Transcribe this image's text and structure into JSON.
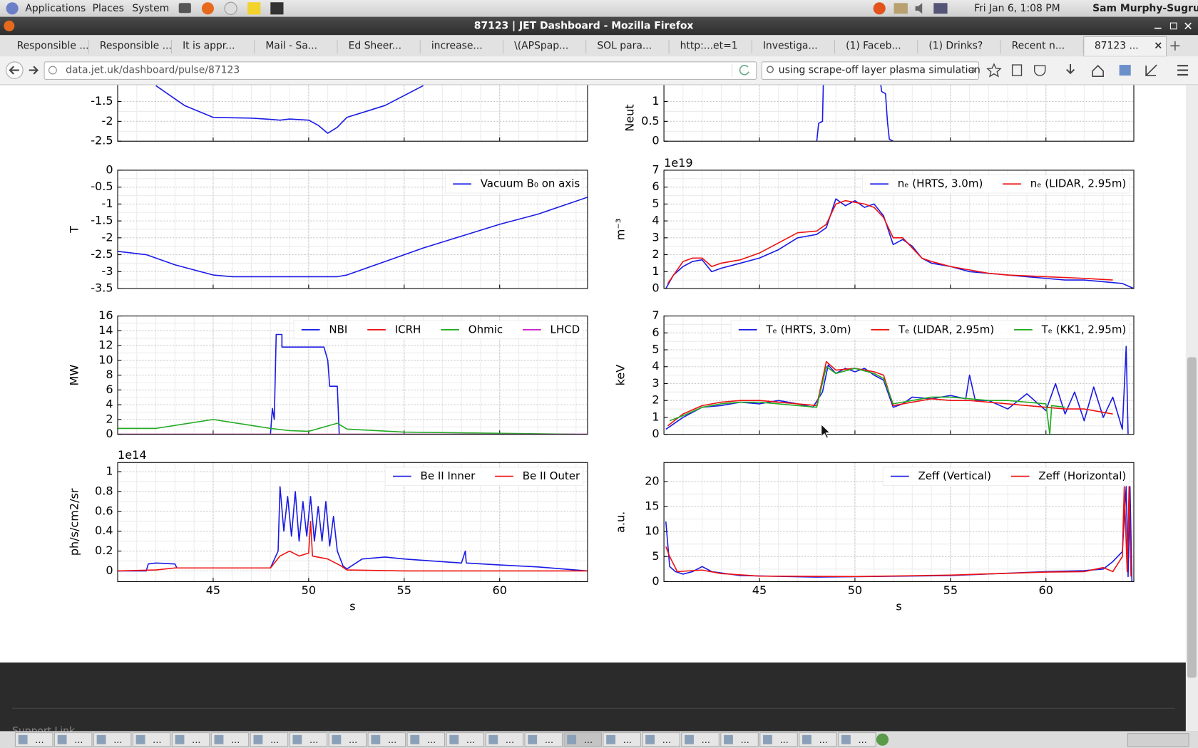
{
  "topbar": {
    "menus": [
      "Applications",
      "Places",
      "System"
    ],
    "clock": "Fri Jan  6,  1:08 PM",
    "user": "Sam Murphy-Sugrue"
  },
  "window_title": "87123 | JET Dashboard - Mozilla Firefox",
  "tabs": [
    "Responsible ...",
    "Responsible ...",
    "It is appr...",
    "Mail - Sa...",
    "Ed Sheer...",
    "increase...",
    "\\(APSpap...",
    "SOL para...",
    "http:...et=1",
    "Investiga...",
    "(1) Faceb...",
    "(1) Drinks?",
    "Recent n...",
    "87123 ..."
  ],
  "url": "data.jet.uk/dashboard/pulse/87123",
  "search": "using scrape-off layer plasma simulation",
  "footer": {
    "link": "Support Link"
  },
  "taskbar": [
    "...",
    "...",
    "...",
    "...",
    "...",
    "...",
    "...",
    "...",
    "...",
    "...",
    "...",
    "...",
    "...",
    "...",
    "...",
    "...",
    "...",
    "...",
    "...",
    "...",
    "...",
    "..."
  ],
  "charts": [
    {
      "type": "line",
      "xlim": [
        40,
        64.6
      ],
      "xticks": [
        45,
        50,
        55,
        60
      ],
      "ylim": [
        -2.5,
        -1.02
      ],
      "yticks": [
        -2.5,
        -2.0,
        -1.5
      ],
      "grid": true,
      "series": [
        {
          "color": "#1a1ae6",
          "x": [
            42,
            43.5,
            45,
            47,
            48,
            48.5,
            49,
            50,
            50.5,
            51,
            51.5,
            52,
            53,
            54,
            56
          ],
          "values": [
            -1.1,
            -1.6,
            -1.9,
            -1.92,
            -1.95,
            -1.97,
            -1.94,
            -1.97,
            -2.1,
            -2.3,
            -2.15,
            -1.9,
            -1.75,
            -1.6,
            -1.1
          ]
        }
      ]
    },
    {
      "type": "line",
      "ylabel": "Neut",
      "xlim": [
        40,
        64.6
      ],
      "xticks": [
        45,
        50,
        55,
        60
      ],
      "ylim": [
        0,
        1.48
      ],
      "yticks": [
        0.0,
        0.5,
        1.0
      ],
      "grid": true,
      "series": [
        {
          "color": "#1a1ae6",
          "x": [
            48,
            48.1,
            48.3,
            48.35,
            51.3,
            51.4,
            51.6,
            51.7,
            51.8,
            52
          ],
          "values": [
            0,
            0.45,
            0.5,
            1.6,
            1.6,
            1.25,
            1.2,
            0.5,
            0.05,
            0
          ]
        }
      ]
    },
    {
      "type": "line",
      "ylabel": "T",
      "xlim": [
        40,
        64.6
      ],
      "xticks": [
        45,
        50,
        55,
        60
      ],
      "ylim": [
        -3.5,
        0
      ],
      "yticks": [
        0.0,
        -0.5,
        -1.0,
        -1.5,
        -2.0,
        -2.5,
        -3.0,
        -3.5
      ],
      "grid": true,
      "legend": "upper right",
      "series": [
        {
          "name": "Vacuum B₀ on axis",
          "color": "#1a1ae6",
          "x": [
            40,
            41.5,
            43,
            45,
            46,
            51.5,
            52,
            54,
            56,
            58,
            60,
            62,
            64.6
          ],
          "values": [
            -2.4,
            -2.5,
            -2.8,
            -3.1,
            -3.15,
            -3.15,
            -3.1,
            -2.7,
            -2.3,
            -1.95,
            -1.6,
            -1.3,
            -0.8
          ]
        }
      ]
    },
    {
      "type": "line",
      "ylabel": "m⁻³",
      "offset_text": "1e19",
      "xlim": [
        40,
        64.6
      ],
      "xticks": [
        45,
        50,
        55,
        60
      ],
      "ylim": [
        0,
        7
      ],
      "yticks": [
        0,
        1,
        2,
        3,
        4,
        5,
        6,
        7
      ],
      "grid": true,
      "legend": "upper right",
      "series": [
        {
          "name": "nₑ (HRTS, 3.0m)",
          "color": "#1a1ae6",
          "x": [
            40.1,
            40.5,
            41,
            41.5,
            42,
            42.5,
            43,
            44,
            45,
            46,
            47,
            48,
            48.5,
            49,
            49.5,
            50,
            50.5,
            51,
            51.5,
            52,
            52.5,
            53,
            53.5,
            54,
            55,
            56,
            57,
            58,
            59,
            60,
            61,
            62,
            63,
            64,
            64.4,
            64.6
          ],
          "values": [
            0,
            0.8,
            1.3,
            1.6,
            1.7,
            1.0,
            1.2,
            1.5,
            1.8,
            2.3,
            3.0,
            3.2,
            3.6,
            5.3,
            4.9,
            5.2,
            4.8,
            5.0,
            4.3,
            2.6,
            2.9,
            2.5,
            1.8,
            1.5,
            1.3,
            1.0,
            0.9,
            0.8,
            0.7,
            0.6,
            0.5,
            0.5,
            0.4,
            0.3,
            0.1,
            0
          ]
        },
        {
          "name": "nₑ (LIDAR, 2.95m)",
          "color": "#ee1111",
          "x": [
            40.2,
            41,
            41.5,
            42,
            42.5,
            43,
            44,
            45,
            46,
            47,
            48,
            48.5,
            49,
            49.5,
            50,
            50.5,
            51,
            51.5,
            52,
            52.5,
            53,
            53.5,
            54,
            55,
            56,
            57,
            58,
            60,
            62,
            63.5
          ],
          "values": [
            0.3,
            1.6,
            1.8,
            1.8,
            1.3,
            1.5,
            1.7,
            2.1,
            2.7,
            3.3,
            3.4,
            3.8,
            5.0,
            5.2,
            5.1,
            5.0,
            4.8,
            4.2,
            3.0,
            3.0,
            2.4,
            1.8,
            1.6,
            1.3,
            1.1,
            0.9,
            0.8,
            0.7,
            0.6,
            0.5
          ]
        }
      ]
    },
    {
      "type": "line",
      "ylabel": "MW",
      "xlim": [
        40,
        64.6
      ],
      "xticks": [
        45,
        50,
        55,
        60
      ],
      "ylim": [
        0,
        16
      ],
      "yticks": [
        0,
        2,
        4,
        6,
        8,
        10,
        12,
        14,
        16
      ],
      "grid": true,
      "legend": "upper right",
      "series": [
        {
          "name": "NBI",
          "color": "#1a1ae6",
          "x": [
            40,
            48,
            48.1,
            48.2,
            48.3,
            48.6,
            48.6,
            50.8,
            51,
            51.1,
            51.5,
            51.6,
            64.6
          ],
          "values": [
            0,
            0,
            3.5,
            2,
            13.5,
            13.5,
            11.8,
            11.8,
            10,
            6.5,
            6.5,
            0,
            0
          ]
        },
        {
          "name": "ICRH",
          "color": "#ee1111",
          "x": [
            40,
            64.6
          ],
          "values": [
            0,
            0
          ]
        },
        {
          "name": "Ohmic",
          "color": "#22aa22",
          "x": [
            40,
            42,
            45,
            47,
            48,
            49,
            50,
            51.5,
            52,
            55,
            64
          ],
          "values": [
            0.8,
            0.8,
            2,
            1.2,
            0.8,
            0.5,
            0.4,
            1.5,
            0.7,
            0.3,
            0
          ]
        },
        {
          "name": "LHCD",
          "color": "#cc22cc",
          "x": [
            40,
            64.6
          ],
          "values": [
            0,
            0
          ]
        }
      ]
    },
    {
      "type": "line",
      "ylabel": "keV",
      "xlim": [
        40,
        64.6
      ],
      "xticks": [
        45,
        50,
        55,
        60
      ],
      "ylim": [
        0,
        7
      ],
      "yticks": [
        0,
        1,
        2,
        3,
        4,
        5,
        6,
        7
      ],
      "grid": true,
      "legend": "upper right",
      "series": [
        {
          "name": "Tₑ (HRTS, 3.0m)",
          "color": "#1a1ae6",
          "x": [
            40.1,
            41,
            42,
            43,
            44,
            45,
            46,
            47,
            47.8,
            48.3,
            48.6,
            49,
            49.5,
            50,
            50.5,
            51,
            51.5,
            52,
            52.5,
            53,
            54,
            55,
            55.8,
            56,
            56.3,
            57,
            58,
            59,
            60,
            60.5,
            61,
            61.5,
            62,
            62.5,
            63,
            63.5,
            64,
            64.2,
            64.3
          ],
          "values": [
            0.3,
            1.0,
            1.6,
            1.7,
            1.9,
            1.8,
            2.0,
            1.8,
            1.6,
            2.5,
            4.1,
            3.6,
            3.9,
            3.7,
            3.9,
            3.5,
            3.2,
            1.6,
            1.8,
            2.2,
            2.1,
            2.3,
            2.1,
            3.5,
            2.0,
            2.0,
            1.5,
            2.4,
            1.4,
            3.0,
            1.2,
            2.5,
            0.8,
            2.8,
            1.0,
            2.2,
            0.3,
            5.2,
            0
          ]
        },
        {
          "name": "Tₑ (LIDAR, 2.95m)",
          "color": "#ee1111",
          "x": [
            40.2,
            41,
            42,
            43,
            44,
            45,
            46,
            47,
            48,
            48.5,
            49,
            50,
            51,
            51.5,
            52,
            53,
            54,
            55,
            56,
            57,
            58,
            59,
            60,
            61,
            62,
            63,
            63.5
          ],
          "values": [
            0.5,
            1.2,
            1.7,
            1.9,
            2.0,
            2.0,
            1.9,
            1.8,
            1.7,
            4.3,
            3.8,
            3.9,
            3.7,
            3.5,
            1.7,
            1.9,
            2.1,
            2.0,
            2.0,
            1.9,
            1.8,
            1.7,
            1.6,
            1.5,
            1.5,
            1.3,
            1.2
          ]
        },
        {
          "name": "Tₑ (KK1, 2.95m)",
          "color": "#22aa22",
          "x": [
            40.3,
            41,
            42,
            43,
            44,
            45,
            46,
            47,
            48,
            48.5,
            49,
            50,
            51,
            51.5,
            52,
            53,
            54,
            55,
            56,
            57,
            58,
            59,
            60,
            60.2,
            60.3,
            61
          ],
          "values": [
            0.8,
            1.1,
            1.6,
            1.8,
            1.9,
            1.9,
            1.8,
            1.7,
            1.6,
            4.0,
            3.6,
            3.9,
            3.6,
            3.3,
            1.8,
            2.0,
            2.2,
            2.2,
            2.1,
            2.0,
            2.0,
            1.9,
            1.8,
            0,
            1.7,
            1.6
          ]
        }
      ]
    },
    {
      "type": "line",
      "ylabel": "ph/s/cm2/sr",
      "offset_text": "1e14",
      "xlabel": "s",
      "xlim": [
        40,
        64.6
      ],
      "xticks": [
        45,
        50,
        55,
        60
      ],
      "ylim": [
        -0.108,
        1.092
      ],
      "yticks": [
        0.0,
        0.2,
        0.4,
        0.6,
        0.8,
        1.0
      ],
      "grid": true,
      "legend": "upper right",
      "series": [
        {
          "name": "Be II Inner",
          "color": "#1a1ae6",
          "x": [
            40,
            41.5,
            41.6,
            42,
            43,
            43.1,
            48,
            48.4,
            48.5,
            48.7,
            48.9,
            49.1,
            49.3,
            49.5,
            49.7,
            49.9,
            50.1,
            50.3,
            50.5,
            50.7,
            50.9,
            51.1,
            51.3,
            51.5,
            51.8,
            52,
            52.8,
            54,
            55,
            58,
            58.2,
            58.25,
            60,
            62,
            64.6
          ],
          "values": [
            0.0,
            0.0,
            0.07,
            0.08,
            0.07,
            0.03,
            0.03,
            0.2,
            0.85,
            0.4,
            0.75,
            0.35,
            0.8,
            0.3,
            0.7,
            0.35,
            0.75,
            0.3,
            0.65,
            0.3,
            0.7,
            0.25,
            0.55,
            0.2,
            0.05,
            0.02,
            0.12,
            0.14,
            0.12,
            0.08,
            0.2,
            0.08,
            0.06,
            0.04,
            0.0
          ]
        },
        {
          "name": "Be II Outer",
          "color": "#ee1111",
          "x": [
            40,
            42,
            43,
            48,
            48.5,
            49,
            49.5,
            50,
            50.1,
            50.2,
            51,
            51.7,
            52,
            55,
            64.6
          ],
          "values": [
            0.0,
            0.01,
            0.03,
            0.03,
            0.15,
            0.2,
            0.15,
            0.18,
            0.5,
            0.15,
            0.12,
            0.05,
            0.01,
            0.0,
            0
          ]
        }
      ]
    },
    {
      "type": "line",
      "ylabel": "a.u.",
      "xlabel": "s",
      "xlim": [
        40,
        64.6
      ],
      "xticks": [
        45,
        50,
        55,
        60
      ],
      "ylim": [
        0,
        23.8
      ],
      "yticks": [
        0,
        5,
        10,
        15,
        20
      ],
      "grid": true,
      "legend": "upper right",
      "series": [
        {
          "name": "Zeff (Vertical)",
          "color": "#1a1ae6",
          "x": [
            40.1,
            40.3,
            40.6,
            41,
            41.5,
            42,
            42.5,
            44,
            48,
            55,
            60,
            62,
            63,
            63.5,
            64,
            64.2,
            64.3,
            64.4,
            64.5
          ],
          "values": [
            12,
            3,
            2,
            1.5,
            2,
            3,
            2,
            1.2,
            0.9,
            1.2,
            2.0,
            2.2,
            2.5,
            4,
            6,
            19,
            1,
            19,
            0
          ]
        },
        {
          "name": "Zeff (Horizontal)",
          "color": "#ee1111",
          "x": [
            40.1,
            40.3,
            40.7,
            41.5,
            42,
            43,
            45,
            50,
            55,
            60,
            62,
            63,
            63.5,
            64,
            64.1,
            64.25,
            64.35,
            64.45
          ],
          "values": [
            7,
            5,
            2,
            2.2,
            2.3,
            1.6,
            1.1,
            1.0,
            1.3,
            1.9,
            2.0,
            2.8,
            2.0,
            5,
            19,
            2,
            19,
            1
          ]
        }
      ]
    }
  ]
}
